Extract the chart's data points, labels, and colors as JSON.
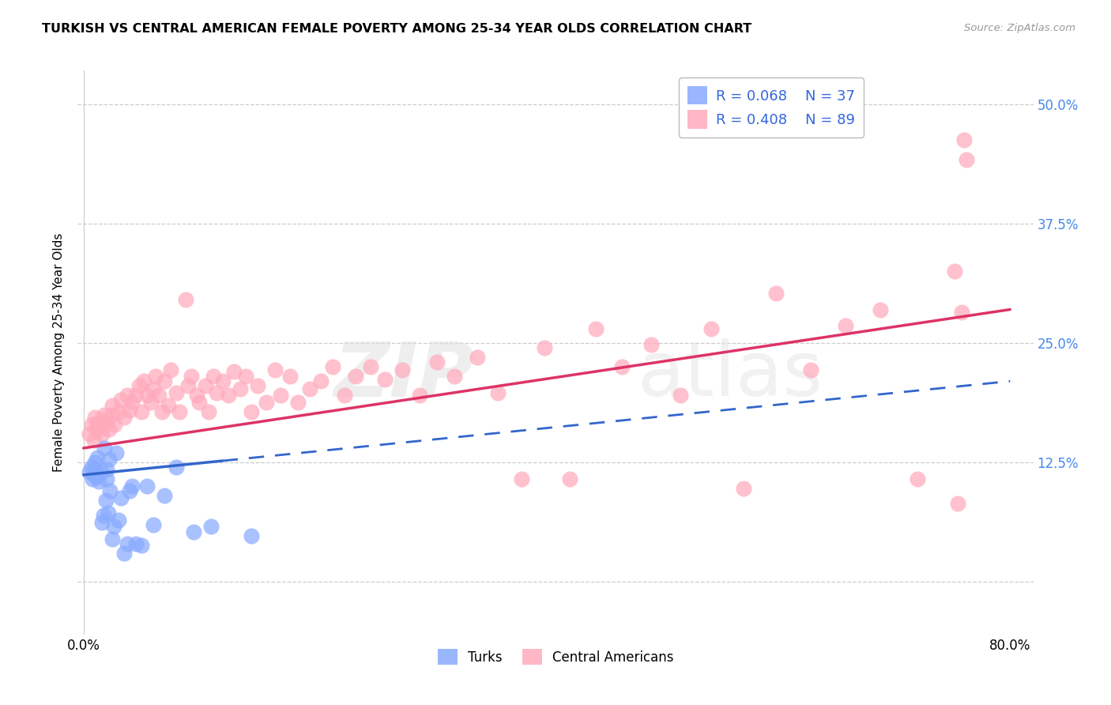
{
  "title": "TURKISH VS CENTRAL AMERICAN FEMALE POVERTY AMONG 25-34 YEAR OLDS CORRELATION CHART",
  "source": "Source: ZipAtlas.com",
  "ylabel": "Female Poverty Among 25-34 Year Olds",
  "background_color": "#ffffff",
  "grid_color": "#c8c8c8",
  "xlim": [
    -0.005,
    0.82
  ],
  "ylim": [
    -0.055,
    0.535
  ],
  "yticks": [
    0.0,
    0.125,
    0.25,
    0.375,
    0.5
  ],
  "yticklabels_right": [
    "",
    "12.5%",
    "25.0%",
    "37.5%",
    "50.0%"
  ],
  "xticks": [
    0.0,
    0.1,
    0.2,
    0.3,
    0.4,
    0.5,
    0.6,
    0.7,
    0.8
  ],
  "xticklabels": [
    "0.0%",
    "",
    "",
    "",
    "",
    "",
    "",
    "",
    "80.0%"
  ],
  "turks_R": "R = 0.068",
  "turks_N": "N = 37",
  "central_R": "R = 0.408",
  "central_N": "N = 89",
  "turks_scatter_color": "#88aaff",
  "turks_line_color": "#3366cc",
  "central_scatter_color": "#ffaabb",
  "central_line_color": "#dd3366",
  "legend_text_color": "#3366dd",
  "right_tick_color": "#4488ee",
  "turks_x": [
    0.005,
    0.007,
    0.008,
    0.009,
    0.01,
    0.01,
    0.011,
    0.012,
    0.013,
    0.015,
    0.016,
    0.017,
    0.018,
    0.019,
    0.02,
    0.02,
    0.021,
    0.022,
    0.023,
    0.025,
    0.026,
    0.028,
    0.03,
    0.032,
    0.035,
    0.038,
    0.04,
    0.042,
    0.045,
    0.05,
    0.055,
    0.06,
    0.07,
    0.08,
    0.095,
    0.11,
    0.145
  ],
  "turks_y": [
    0.115,
    0.12,
    0.108,
    0.112,
    0.118,
    0.125,
    0.11,
    0.13,
    0.105,
    0.115,
    0.062,
    0.07,
    0.14,
    0.085,
    0.118,
    0.108,
    0.072,
    0.128,
    0.095,
    0.045,
    0.058,
    0.135,
    0.065,
    0.088,
    0.03,
    0.04,
    0.095,
    0.1,
    0.04,
    0.038,
    0.1,
    0.06,
    0.09,
    0.12,
    0.052,
    0.058,
    0.048
  ],
  "central_x": [
    0.005,
    0.007,
    0.009,
    0.01,
    0.011,
    0.012,
    0.014,
    0.015,
    0.016,
    0.018,
    0.02,
    0.022,
    0.024,
    0.025,
    0.027,
    0.03,
    0.032,
    0.035,
    0.038,
    0.04,
    0.042,
    0.045,
    0.048,
    0.05,
    0.052,
    0.055,
    0.058,
    0.06,
    0.062,
    0.065,
    0.068,
    0.07,
    0.073,
    0.075,
    0.08,
    0.083,
    0.088,
    0.09,
    0.093,
    0.098,
    0.1,
    0.105,
    0.108,
    0.112,
    0.115,
    0.12,
    0.125,
    0.13,
    0.135,
    0.14,
    0.145,
    0.15,
    0.158,
    0.165,
    0.17,
    0.178,
    0.185,
    0.195,
    0.205,
    0.215,
    0.225,
    0.235,
    0.248,
    0.26,
    0.275,
    0.29,
    0.305,
    0.32,
    0.34,
    0.358,
    0.378,
    0.398,
    0.42,
    0.442,
    0.465,
    0.49,
    0.515,
    0.542,
    0.57,
    0.598,
    0.628,
    0.658,
    0.688,
    0.72,
    0.752,
    0.755,
    0.758,
    0.76,
    0.762
  ],
  "central_y": [
    0.155,
    0.165,
    0.148,
    0.172,
    0.158,
    0.165,
    0.162,
    0.17,
    0.155,
    0.175,
    0.168,
    0.16,
    0.175,
    0.185,
    0.165,
    0.178,
    0.19,
    0.172,
    0.195,
    0.18,
    0.188,
    0.195,
    0.205,
    0.178,
    0.21,
    0.195,
    0.188,
    0.202,
    0.215,
    0.195,
    0.178,
    0.21,
    0.185,
    0.222,
    0.198,
    0.178,
    0.295,
    0.205,
    0.215,
    0.195,
    0.188,
    0.205,
    0.178,
    0.215,
    0.198,
    0.21,
    0.195,
    0.22,
    0.202,
    0.215,
    0.178,
    0.205,
    0.188,
    0.222,
    0.195,
    0.215,
    0.188,
    0.202,
    0.21,
    0.225,
    0.195,
    0.215,
    0.225,
    0.212,
    0.222,
    0.195,
    0.23,
    0.215,
    0.235,
    0.198,
    0.108,
    0.245,
    0.108,
    0.265,
    0.225,
    0.248,
    0.195,
    0.265,
    0.098,
    0.302,
    0.222,
    0.268,
    0.285,
    0.108,
    0.325,
    0.082,
    0.282,
    0.462,
    0.442
  ]
}
